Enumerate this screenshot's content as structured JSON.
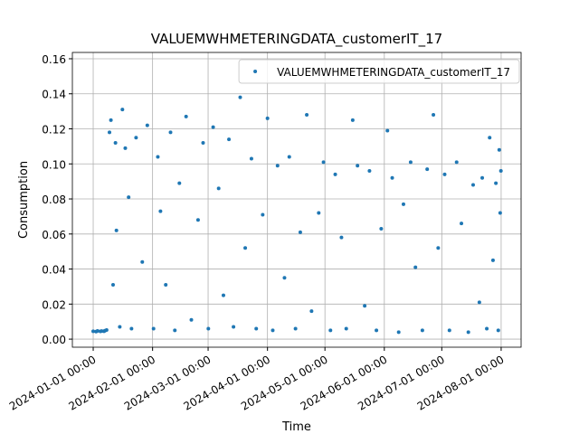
{
  "chart_data": {
    "type": "scatter",
    "title": "VALUEMWHMETERINGDATA_customerIT_17",
    "xlabel": "Time",
    "ylabel": "Consumption",
    "legend": "upper right",
    "grid": true,
    "xlim": [
      "2023-12-21 03:00",
      "2024-08-11 10:00"
    ],
    "xticks": [
      "2024-01-01 00:00",
      "2024-02-01 00:00",
      "2024-03-01 00:00",
      "2024-04-01 00:00",
      "2024-05-01 00:00",
      "2024-06-01 00:00",
      "2024-07-01 00:00",
      "2024-08-01 00:00"
    ],
    "ylim": [
      -0.0046,
      0.1636
    ],
    "yticks": [
      {
        "value": 0,
        "label": "0.00"
      },
      0.02,
      0.04,
      0.06,
      0.08,
      {
        "value": 0.1,
        "label": "0.10"
      },
      0.12,
      0.14,
      0.16
    ],
    "x": [
      "2024-01-01 00:00",
      "2024-01-02 12:00",
      "2024-01-03 06:00",
      "2024-01-04 18:00",
      "2024-01-05 09:00",
      "2024-01-06 15:00",
      "2024-01-07 03:00",
      "2024-01-08 00:00",
      "2024-01-09 12:00",
      "2024-01-10 06:00",
      "2024-01-11 09:00",
      "2024-01-12 15:00",
      "2024-01-13 03:00",
      "2024-01-14 21:00",
      "2024-01-16 06:00",
      "2024-01-17 18:00",
      "2024-01-19 12:00",
      "2024-01-21 00:00",
      "2024-01-23 09:00",
      "2024-01-26 15:00",
      "2024-01-29 06:00",
      "2024-02-01 12:00",
      "2024-02-03 18:00",
      "2024-02-05 03:00",
      "2024-02-07 21:00",
      "2024-02-10 09:00",
      "2024-02-12 15:00",
      "2024-02-15 00:00",
      "2024-02-18 12:00",
      "2024-02-21 06:00",
      "2024-02-24 18:00",
      "2024-02-27 09:00",
      "2024-03-01 03:00",
      "2024-03-03 15:00",
      "2024-03-06 12:00",
      "2024-03-09 00:00",
      "2024-03-11 21:00",
      "2024-03-14 06:00",
      "2024-03-17 18:00",
      "2024-03-20 09:00",
      "2024-03-23 15:00",
      "2024-03-26 03:00",
      "2024-03-29 12:00",
      "2024-04-01 00:00",
      "2024-04-03 18:00",
      "2024-04-06 06:00",
      "2024-04-09 21:00",
      "2024-04-12 09:00",
      "2024-04-15 15:00",
      "2024-04-18 03:00",
      "2024-04-21 12:00",
      "2024-04-24 00:00",
      "2024-04-27 18:00",
      "2024-04-30 06:00",
      "2024-05-03 21:00",
      "2024-05-06 09:00",
      "2024-05-09 15:00",
      "2024-05-12 03:00",
      "2024-05-15 12:00",
      "2024-05-18 00:00",
      "2024-05-21 18:00",
      "2024-05-24 06:00",
      "2024-05-27 21:00",
      "2024-05-30 09:00",
      "2024-06-02 15:00",
      "2024-06-05 03:00",
      "2024-06-08 12:00",
      "2024-06-11 00:00",
      "2024-06-14 18:00",
      "2024-06-17 06:00",
      "2024-06-20 21:00",
      "2024-06-23 09:00",
      "2024-06-26 15:00",
      "2024-06-29 03:00",
      "2024-07-02 12:00",
      "2024-07-05 00:00",
      "2024-07-08 18:00",
      "2024-07-11 06:00",
      "2024-07-14 21:00",
      "2024-07-17 09:00",
      "2024-07-20 15:00",
      "2024-07-22 03:00",
      "2024-07-24 12:00",
      "2024-07-26 00:00",
      "2024-07-27 18:00",
      "2024-07-29 06:00",
      "2024-07-30 12:00",
      "2024-07-31 00:00",
      "2024-07-31 12:00",
      "2024-07-31 21:00"
    ],
    "series": [
      {
        "name": "VALUEMWHMETERINGDATA_customerIT_17",
        "color": "#1f77b4",
        "values": [
          0.0045,
          0.0043,
          0.0047,
          0.0044,
          0.0046,
          0.0045,
          0.0048,
          0.0052,
          0.118,
          0.125,
          0.031,
          0.112,
          0.062,
          0.007,
          0.131,
          0.109,
          0.081,
          0.006,
          0.115,
          0.044,
          0.122,
          0.006,
          0.104,
          0.073,
          0.031,
          0.118,
          0.005,
          0.089,
          0.127,
          0.011,
          0.068,
          0.112,
          0.006,
          0.121,
          0.086,
          0.025,
          0.114,
          0.007,
          0.138,
          0.052,
          0.103,
          0.006,
          0.071,
          0.126,
          0.005,
          0.099,
          0.035,
          0.104,
          0.006,
          0.061,
          0.128,
          0.016,
          0.072,
          0.101,
          0.005,
          0.094,
          0.058,
          0.006,
          0.125,
          0.099,
          0.019,
          0.096,
          0.005,
          0.063,
          0.119,
          0.092,
          0.004,
          0.077,
          0.101,
          0.041,
          0.005,
          0.097,
          0.128,
          0.052,
          0.094,
          0.005,
          0.101,
          0.066,
          0.004,
          0.088,
          0.021,
          0.092,
          0.006,
          0.115,
          0.045,
          0.089,
          0.005,
          0.108,
          0.072,
          0.096
        ]
      }
    ]
  }
}
